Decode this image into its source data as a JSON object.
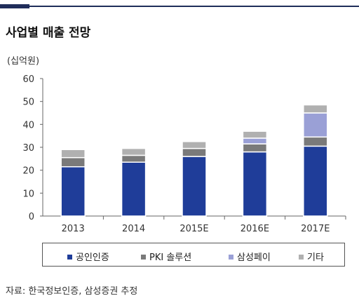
{
  "title": "사업별 매출 전망",
  "unit_label": "(십억원)",
  "source": "자료: 한국정보인증, 삼성증권 추정",
  "chart_data": {
    "type": "bar",
    "stacked": true,
    "categories": [
      "2013",
      "2014",
      "2015E",
      "2016E",
      "2017E"
    ],
    "ylim": [
      0,
      60
    ],
    "yticks": [
      0,
      10,
      20,
      30,
      40,
      50,
      60
    ],
    "ylabel": "(십억원)",
    "legend_position": "bottom",
    "grid": false,
    "series": [
      {
        "name": "공인인증",
        "color": "#1f3d99",
        "values": [
          21.5,
          23.5,
          26,
          28,
          30.5
        ]
      },
      {
        "name": "PKI 솔루션",
        "color": "#7a7a7a",
        "values": [
          4,
          3,
          3.5,
          3.5,
          4
        ]
      },
      {
        "name": "삼성페이",
        "color": "#9aa0d6",
        "values": [
          0,
          0,
          0,
          2.5,
          10.5
        ]
      },
      {
        "name": "기타",
        "color": "#b0b0b0",
        "values": [
          3.5,
          3,
          3,
          3,
          3.5
        ]
      }
    ]
  }
}
